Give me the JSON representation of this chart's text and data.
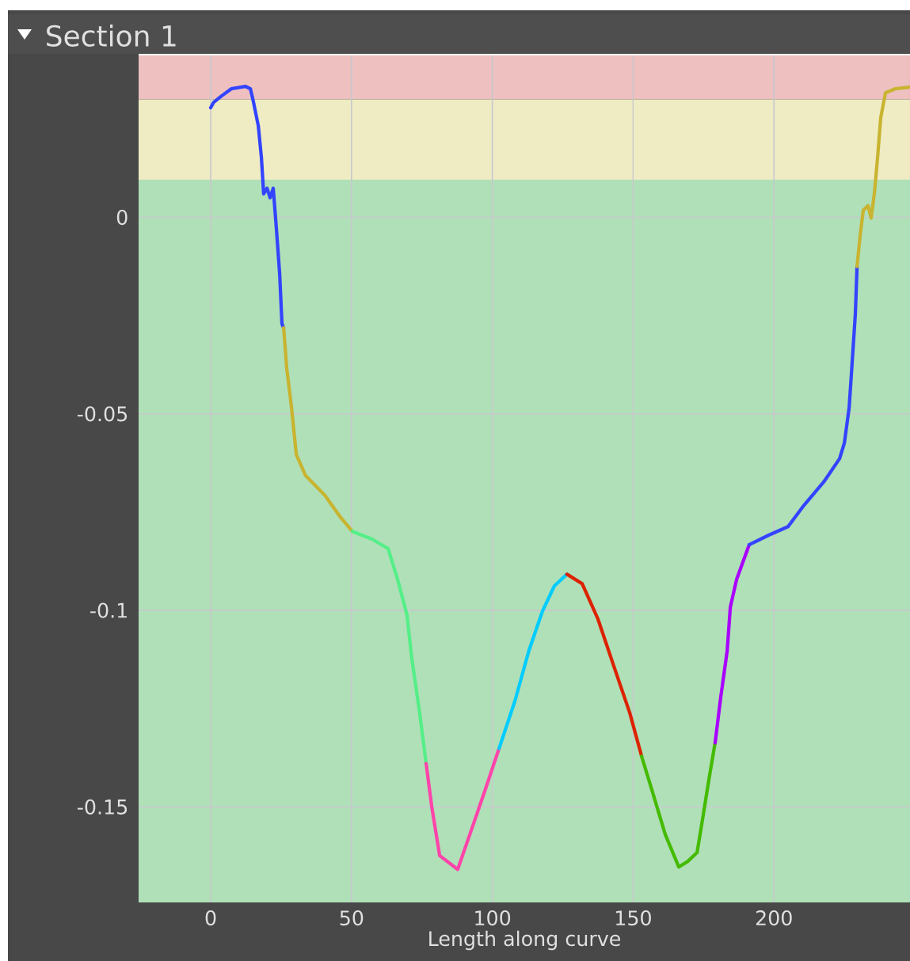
{
  "chart_data": {
    "type": "line",
    "title": "Section 1",
    "xlabel": "Length along curve",
    "xlim": [
      -25.6,
      248.3
    ],
    "ylim": [
      -0.1743,
      0.0412
    ],
    "xticks": [
      0,
      50,
      100,
      150,
      200
    ],
    "yticks": [
      0,
      -0.05,
      -0.1,
      -0.15
    ],
    "grid": true,
    "bands": [
      {
        "axis": "y",
        "from": 0.03,
        "to": 0.0412,
        "color": "#eec0c0"
      },
      {
        "axis": "y",
        "from": 0.0096,
        "to": 0.03,
        "color": "#efecc4"
      },
      {
        "axis": "y",
        "from": -0.1743,
        "to": 0.0096,
        "color": "#b0e0b8"
      }
    ],
    "series": [
      {
        "color": "#3344ff",
        "x": [
          0,
          1.1,
          3.9,
          7.3,
          12.4,
          14.1,
          15.2,
          16.9,
          18.0,
          18.8,
          20.0,
          21.1,
          22.2,
          23.3,
          24.5,
          25.3,
          25.9
        ],
        "values": [
          0.0279,
          0.0293,
          0.0309,
          0.0327,
          0.0333,
          0.0327,
          0.0293,
          0.0233,
          0.0153,
          0.006,
          0.0074,
          0.005,
          0.0074,
          -0.0026,
          -0.0145,
          -0.0271,
          -0.0281
        ]
      },
      {
        "color": "#c8b430",
        "x": [
          25.9,
          27.0,
          28.7,
          30.4,
          33.7,
          40.5,
          46.1,
          50.3
        ],
        "values": [
          -0.0281,
          -0.0384,
          -0.0484,
          -0.0604,
          -0.0657,
          -0.0707,
          -0.0763,
          -0.0799
        ]
      },
      {
        "color": "#55ee88",
        "x": [
          50.3,
          57.4,
          63.0,
          66.4,
          69.7,
          71.4,
          74.2,
          76.5
        ],
        "values": [
          -0.0799,
          -0.0819,
          -0.0843,
          -0.0922,
          -0.1012,
          -0.1122,
          -0.1261,
          -0.139
        ]
      },
      {
        "color": "#ff44aa",
        "x": [
          76.5,
          78.5,
          81.3,
          87.7,
          92.5,
          97.3,
          102.4
        ],
        "values": [
          -0.139,
          -0.15,
          -0.1624,
          -0.1659,
          -0.156,
          -0.146,
          -0.1351
        ]
      },
      {
        "color": "#00ccff",
        "x": [
          102.4,
          108.0,
          113.0,
          117.8,
          122.0,
          126.5
        ],
        "values": [
          -0.1351,
          -0.1231,
          -0.1102,
          -0.1002,
          -0.0938,
          -0.0908
        ]
      },
      {
        "color": "#dd2200",
        "x": [
          126.5,
          131.9,
          137.5,
          143.1,
          148.8,
          153.0
        ],
        "values": [
          -0.0908,
          -0.0932,
          -0.1022,
          -0.1141,
          -0.1261,
          -0.1371
        ]
      },
      {
        "color": "#44bb00",
        "x": [
          153.0,
          157.2,
          161.4,
          166.2,
          169.3,
          172.7,
          174.9,
          176.9,
          179.1
        ],
        "values": [
          -0.1371,
          -0.147,
          -0.157,
          -0.1653,
          -0.1639,
          -0.1616,
          -0.152,
          -0.143,
          -0.1337
        ]
      },
      {
        "color": "#aa00ff",
        "x": [
          179.1,
          181.1,
          183.4,
          184.5,
          186.7,
          191.2
        ],
        "values": [
          -0.1337,
          -0.1221,
          -0.1102,
          -0.0992,
          -0.0922,
          -0.0833
        ]
      },
      {
        "color": "#3344ff",
        "x": [
          191.2,
          198.0,
          205.0,
          210.6,
          217.7,
          223.3,
          225.0,
          226.7,
          227.8,
          228.9,
          229.5
        ],
        "values": [
          -0.0833,
          -0.0809,
          -0.0787,
          -0.0733,
          -0.0673,
          -0.0614,
          -0.0574,
          -0.0484,
          -0.0365,
          -0.0245,
          -0.0125
        ]
      },
      {
        "color": "#c8b430",
        "x": [
          229.5,
          230.6,
          231.7,
          233.4,
          234.5,
          235.7,
          236.8,
          237.9,
          239.6,
          243.0,
          248.3
        ],
        "values": [
          -0.0125,
          -0.0046,
          0.0018,
          0.003,
          -0.0002,
          0.0064,
          0.0153,
          0.0253,
          0.0317,
          0.0327,
          0.0331
        ]
      }
    ]
  }
}
